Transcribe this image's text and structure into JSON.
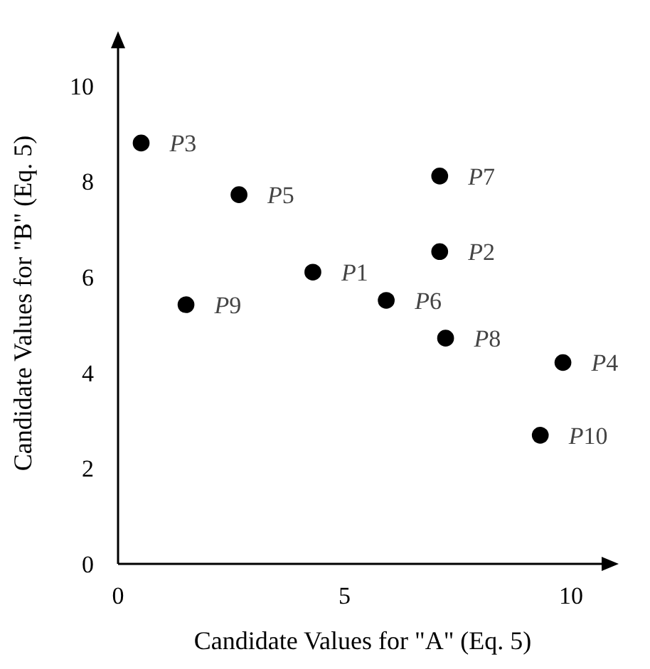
{
  "chart_data": {
    "type": "scatter",
    "xlabel": "Candidate Values for \"A\" (Eq. 5)",
    "ylabel": "Candidate Values for \"B\" (Eq. 5)",
    "x": [
      4.3,
      7.1,
      0.51,
      9.82,
      2.67,
      5.92,
      7.1,
      7.23,
      1.5,
      9.32
    ],
    "series": [
      {
        "color": "#000000",
        "values": [
          6.1,
          6.53,
          8.8,
          4.21,
          7.72,
          5.51,
          8.11,
          4.72,
          5.42,
          2.69
        ]
      }
    ],
    "annotations": [
      {
        "text": "P1",
        "x": 4.3,
        "y": 6.1
      },
      {
        "text": "P2",
        "x": 7.1,
        "y": 6.53
      },
      {
        "text": "P3",
        "x": 0.51,
        "y": 8.8
      },
      {
        "text": "P4",
        "x": 9.82,
        "y": 4.21
      },
      {
        "text": "P5",
        "x": 2.67,
        "y": 7.72
      },
      {
        "text": "P6",
        "x": 5.92,
        "y": 5.51
      },
      {
        "text": "P7",
        "x": 7.1,
        "y": 8.11
      },
      {
        "text": "P8",
        "x": 7.23,
        "y": 4.72
      },
      {
        "text": "P9",
        "x": 1.5,
        "y": 5.42
      },
      {
        "text": "P10",
        "x": 9.32,
        "y": 2.69
      }
    ],
    "xlim": [
      0,
      10.8
    ],
    "ylim": [
      0,
      10.9
    ],
    "xticks": [
      0,
      5,
      10
    ],
    "yticks": [
      0,
      2,
      4,
      6,
      8,
      10
    ],
    "marker": "circle",
    "grid": false
  }
}
